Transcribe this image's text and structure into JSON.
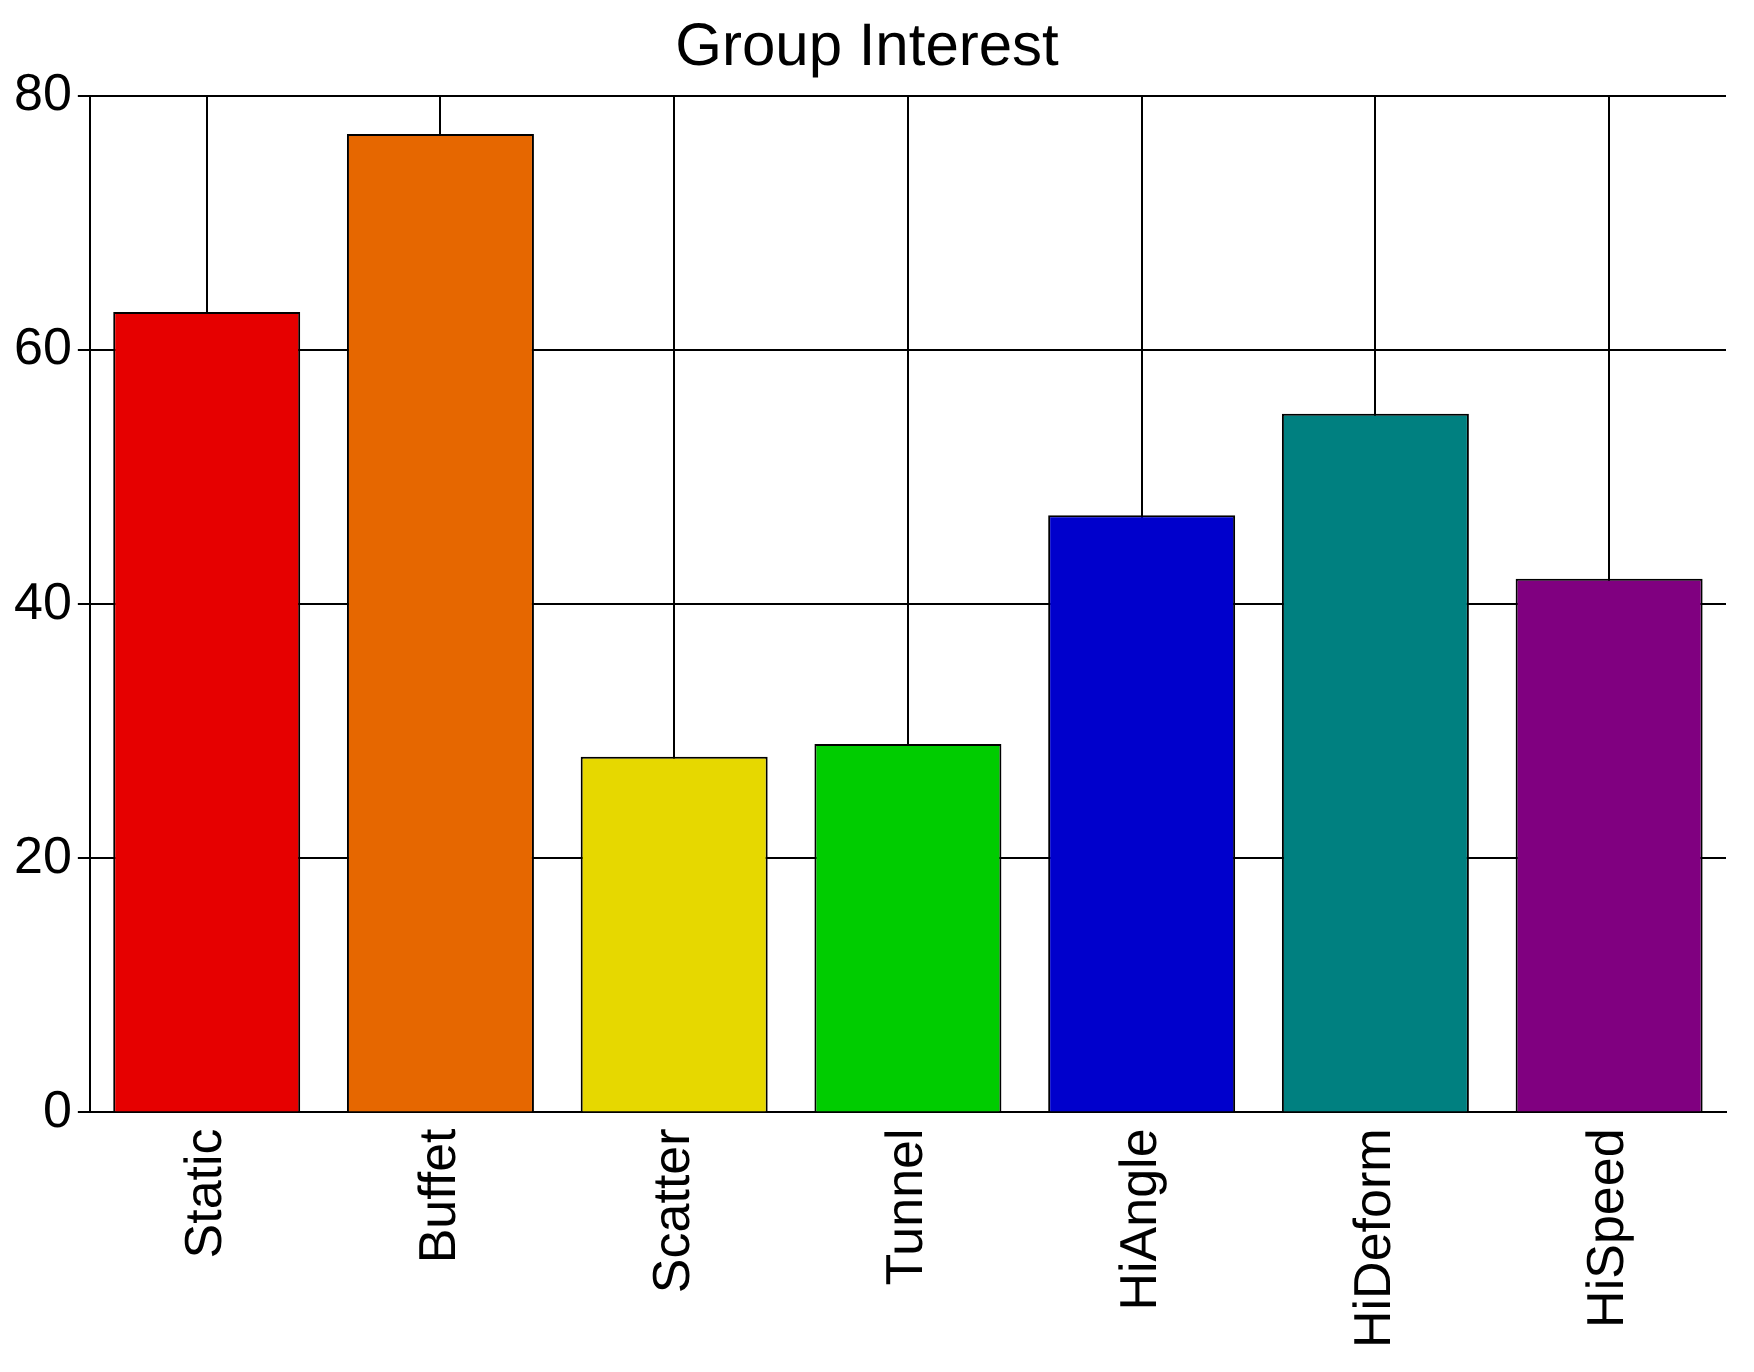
{
  "chart_data": {
    "type": "bar",
    "title": "Group Interest",
    "categories": [
      "Static",
      "Buffet",
      "Scatter",
      "Tunnel",
      "HiAngle",
      "HiDeform",
      "HiSpeed"
    ],
    "values": [
      63,
      77,
      28,
      29,
      47,
      55,
      42
    ],
    "colors": [
      "#e60000",
      "#e66700",
      "#e6d800",
      "#00cc00",
      "#0000cc",
      "#008080",
      "#800080"
    ],
    "ylim": [
      0,
      80
    ],
    "yticks": [
      0,
      20,
      40,
      60,
      80
    ],
    "grid": true,
    "legend": false
  }
}
